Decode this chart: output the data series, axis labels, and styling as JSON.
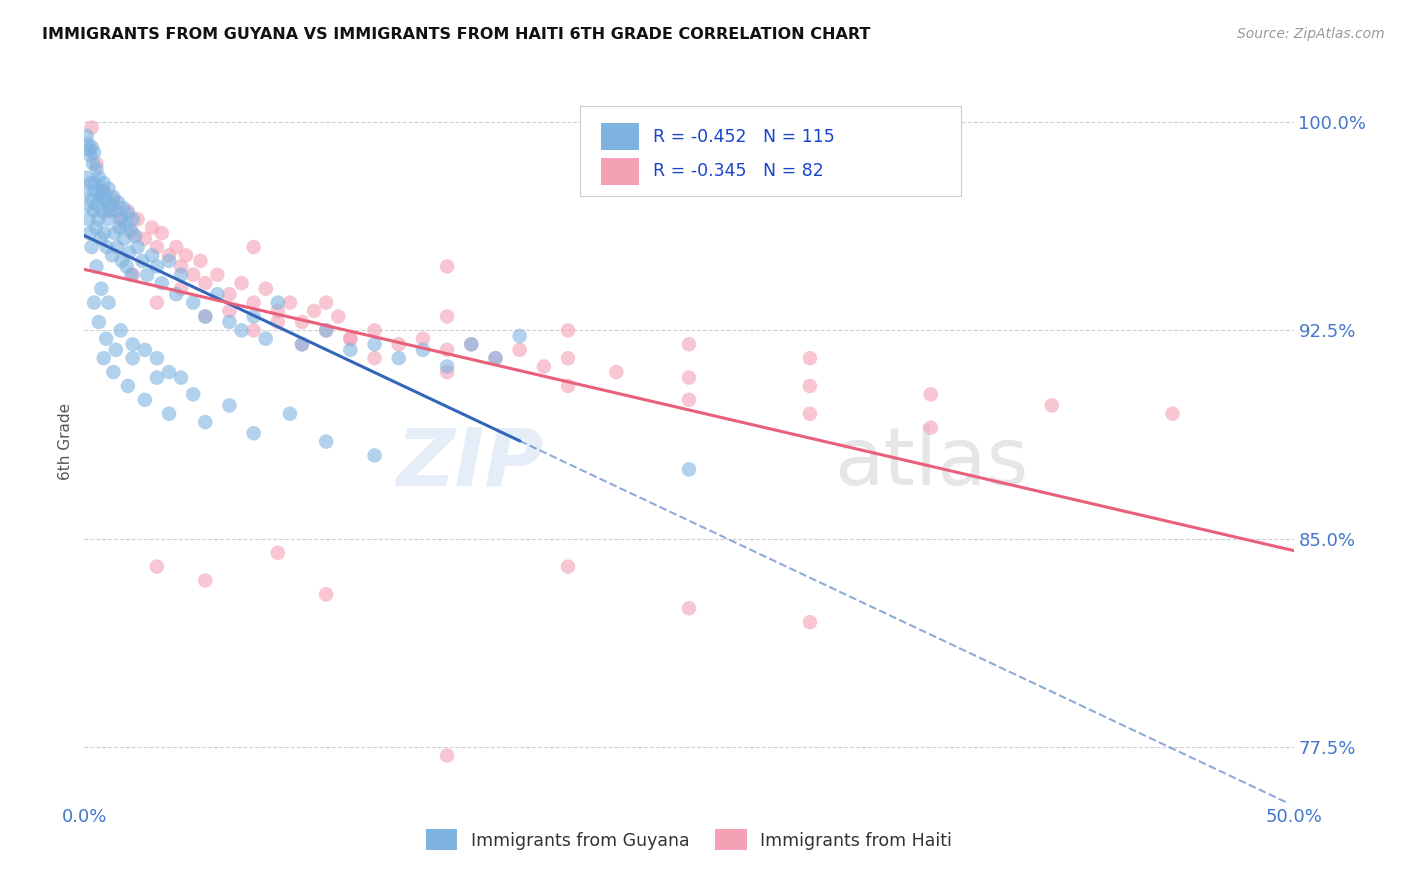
{
  "title": "IMMIGRANTS FROM GUYANA VS IMMIGRANTS FROM HAITI 6TH GRADE CORRELATION CHART",
  "source": "Source: ZipAtlas.com",
  "ylabel": "6th Grade",
  "yticks": [
    77.5,
    85.0,
    92.5,
    100.0
  ],
  "ytick_labels": [
    "77.5%",
    "85.0%",
    "92.5%",
    "100.0%"
  ],
  "xlim": [
    0.0,
    50.0
  ],
  "ylim": [
    75.5,
    101.5
  ],
  "legend_r_guyana": "-0.452",
  "legend_n_guyana": "115",
  "legend_r_haiti": "-0.345",
  "legend_n_haiti": "82",
  "guyana_color": "#7eb3e0",
  "haiti_color": "#f4a0b5",
  "guyana_line_color": "#3366bb",
  "haiti_line_color": "#e8607a",
  "watermark_zip": "ZIP",
  "watermark_atlas": "atlas",
  "background_color": "#ffffff",
  "grid_color": "#d0d0d0",
  "axis_label_color": "#4477cc",
  "guyana_scatter": [
    [
      0.1,
      99.5
    ],
    [
      0.15,
      99.2
    ],
    [
      0.2,
      99.0
    ],
    [
      0.25,
      98.8
    ],
    [
      0.3,
      99.1
    ],
    [
      0.35,
      98.5
    ],
    [
      0.4,
      98.9
    ],
    [
      0.45,
      97.8
    ],
    [
      0.5,
      98.3
    ],
    [
      0.6,
      98.0
    ],
    [
      0.7,
      97.5
    ],
    [
      0.8,
      97.8
    ],
    [
      0.9,
      97.2
    ],
    [
      1.0,
      97.6
    ],
    [
      1.1,
      97.0
    ],
    [
      1.2,
      97.3
    ],
    [
      1.3,
      96.8
    ],
    [
      1.4,
      97.1
    ],
    [
      1.5,
      96.5
    ],
    [
      1.6,
      96.9
    ],
    [
      1.7,
      96.3
    ],
    [
      1.8,
      96.7
    ],
    [
      1.9,
      96.1
    ],
    [
      2.0,
      96.5
    ],
    [
      2.1,
      95.9
    ],
    [
      0.05,
      98.0
    ],
    [
      0.08,
      97.5
    ],
    [
      0.12,
      97.0
    ],
    [
      0.18,
      96.5
    ],
    [
      0.22,
      96.0
    ],
    [
      0.28,
      97.8
    ],
    [
      0.32,
      97.2
    ],
    [
      0.38,
      96.8
    ],
    [
      0.42,
      97.5
    ],
    [
      0.48,
      96.2
    ],
    [
      0.52,
      97.0
    ],
    [
      0.58,
      96.5
    ],
    [
      0.62,
      97.3
    ],
    [
      0.68,
      95.8
    ],
    [
      0.72,
      96.8
    ],
    [
      0.78,
      97.5
    ],
    [
      0.82,
      96.0
    ],
    [
      0.88,
      97.2
    ],
    [
      0.92,
      95.5
    ],
    [
      0.98,
      96.5
    ],
    [
      1.05,
      96.8
    ],
    [
      1.15,
      95.2
    ],
    [
      1.25,
      96.0
    ],
    [
      1.35,
      95.5
    ],
    [
      1.45,
      96.2
    ],
    [
      1.55,
      95.0
    ],
    [
      1.65,
      95.8
    ],
    [
      1.75,
      94.8
    ],
    [
      1.85,
      95.3
    ],
    [
      1.95,
      94.5
    ],
    [
      2.2,
      95.5
    ],
    [
      2.4,
      95.0
    ],
    [
      2.6,
      94.5
    ],
    [
      2.8,
      95.2
    ],
    [
      3.0,
      94.8
    ],
    [
      3.2,
      94.2
    ],
    [
      3.5,
      95.0
    ],
    [
      3.8,
      93.8
    ],
    [
      4.0,
      94.5
    ],
    [
      4.5,
      93.5
    ],
    [
      5.0,
      93.0
    ],
    [
      5.5,
      93.8
    ],
    [
      6.0,
      92.8
    ],
    [
      6.5,
      92.5
    ],
    [
      7.0,
      93.0
    ],
    [
      7.5,
      92.2
    ],
    [
      8.0,
      93.5
    ],
    [
      9.0,
      92.0
    ],
    [
      10.0,
      92.5
    ],
    [
      11.0,
      91.8
    ],
    [
      12.0,
      92.0
    ],
    [
      13.0,
      91.5
    ],
    [
      14.0,
      91.8
    ],
    [
      15.0,
      91.2
    ],
    [
      16.0,
      92.0
    ],
    [
      17.0,
      91.5
    ],
    [
      18.0,
      92.3
    ],
    [
      0.3,
      95.5
    ],
    [
      0.5,
      94.8
    ],
    [
      0.7,
      94.0
    ],
    [
      1.0,
      93.5
    ],
    [
      1.5,
      92.5
    ],
    [
      2.0,
      92.0
    ],
    [
      2.5,
      91.8
    ],
    [
      3.0,
      91.5
    ],
    [
      3.5,
      91.0
    ],
    [
      4.0,
      90.8
    ],
    [
      0.8,
      91.5
    ],
    [
      1.2,
      91.0
    ],
    [
      1.8,
      90.5
    ],
    [
      2.5,
      90.0
    ],
    [
      3.5,
      89.5
    ],
    [
      5.0,
      89.2
    ],
    [
      7.0,
      88.8
    ],
    [
      10.0,
      88.5
    ],
    [
      0.4,
      93.5
    ],
    [
      0.6,
      92.8
    ],
    [
      0.9,
      92.2
    ],
    [
      1.3,
      91.8
    ],
    [
      2.0,
      91.5
    ],
    [
      3.0,
      90.8
    ],
    [
      4.5,
      90.2
    ],
    [
      6.0,
      89.8
    ],
    [
      8.5,
      89.5
    ],
    [
      12.0,
      88.0
    ],
    [
      25.0,
      87.5
    ]
  ],
  "haiti_scatter": [
    [
      0.5,
      98.5
    ],
    [
      0.8,
      97.5
    ],
    [
      1.0,
      96.8
    ],
    [
      1.2,
      97.2
    ],
    [
      1.5,
      96.5
    ],
    [
      1.8,
      96.8
    ],
    [
      2.0,
      96.0
    ],
    [
      2.2,
      96.5
    ],
    [
      2.5,
      95.8
    ],
    [
      2.8,
      96.2
    ],
    [
      3.0,
      95.5
    ],
    [
      3.2,
      96.0
    ],
    [
      3.5,
      95.2
    ],
    [
      3.8,
      95.5
    ],
    [
      4.0,
      94.8
    ],
    [
      4.2,
      95.2
    ],
    [
      4.5,
      94.5
    ],
    [
      4.8,
      95.0
    ],
    [
      5.0,
      94.2
    ],
    [
      5.5,
      94.5
    ],
    [
      6.0,
      93.8
    ],
    [
      6.5,
      94.2
    ],
    [
      7.0,
      93.5
    ],
    [
      7.5,
      94.0
    ],
    [
      8.0,
      93.2
    ],
    [
      8.5,
      93.5
    ],
    [
      9.0,
      92.8
    ],
    [
      9.5,
      93.2
    ],
    [
      10.0,
      92.5
    ],
    [
      10.5,
      93.0
    ],
    [
      11.0,
      92.2
    ],
    [
      12.0,
      92.5
    ],
    [
      13.0,
      92.0
    ],
    [
      14.0,
      92.2
    ],
    [
      15.0,
      91.8
    ],
    [
      16.0,
      92.0
    ],
    [
      17.0,
      91.5
    ],
    [
      18.0,
      91.8
    ],
    [
      19.0,
      91.2
    ],
    [
      20.0,
      91.5
    ],
    [
      22.0,
      91.0
    ],
    [
      25.0,
      90.8
    ],
    [
      30.0,
      90.5
    ],
    [
      35.0,
      90.2
    ],
    [
      40.0,
      89.8
    ],
    [
      45.0,
      89.5
    ],
    [
      3.0,
      93.5
    ],
    [
      5.0,
      93.0
    ],
    [
      7.0,
      92.5
    ],
    [
      9.0,
      92.0
    ],
    [
      12.0,
      91.5
    ],
    [
      15.0,
      91.0
    ],
    [
      20.0,
      90.5
    ],
    [
      25.0,
      90.0
    ],
    [
      30.0,
      89.5
    ],
    [
      2.0,
      94.5
    ],
    [
      4.0,
      94.0
    ],
    [
      6.0,
      93.2
    ],
    [
      8.0,
      92.8
    ],
    [
      11.0,
      92.2
    ],
    [
      0.3,
      99.8
    ],
    [
      10.0,
      93.5
    ],
    [
      15.0,
      93.0
    ],
    [
      20.0,
      92.5
    ],
    [
      25.0,
      92.0
    ],
    [
      30.0,
      91.5
    ],
    [
      7.0,
      95.5
    ],
    [
      15.0,
      94.8
    ],
    [
      5.0,
      83.5
    ],
    [
      10.0,
      83.0
    ],
    [
      20.0,
      84.0
    ],
    [
      25.0,
      82.5
    ],
    [
      30.0,
      82.0
    ],
    [
      8.0,
      84.5
    ],
    [
      35.0,
      89.0
    ],
    [
      3.0,
      84.0
    ],
    [
      15.0,
      77.2
    ]
  ]
}
